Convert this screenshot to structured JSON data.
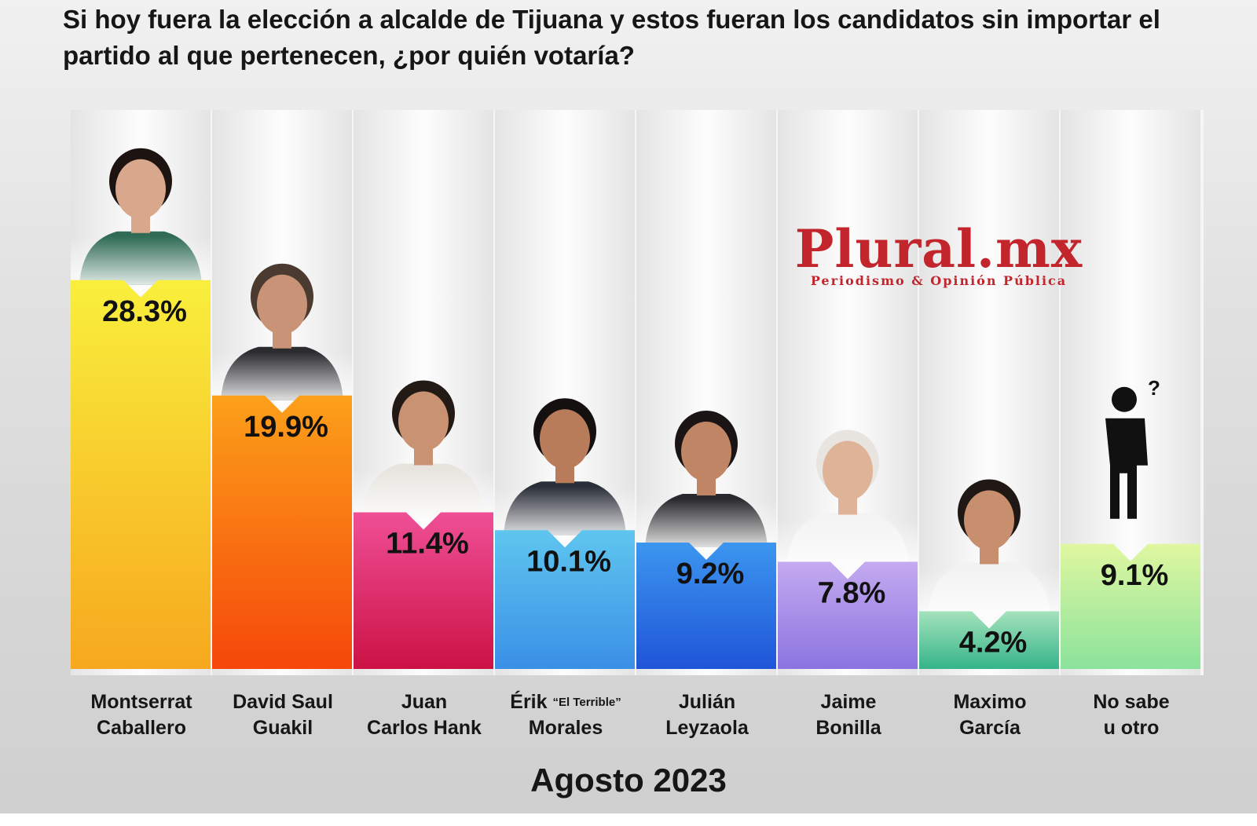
{
  "title": "Si hoy fuera la elección a alcalde de Tijuana y estos fueran los candidatos sin importar el partido al que pertenecen, ¿por quién votaría?",
  "logo": {
    "main": "Plural.mx",
    "sub": "Periodismo & Opinión Pública"
  },
  "footer": "Agosto 2023",
  "chart_data": {
    "type": "bar",
    "categories": [
      "Montserrat Caballero",
      "David Saul Guakil",
      "Juan Carlos Hank",
      "Érik \"El Terrible\" Morales",
      "Julián Leyzaola",
      "Jaime Bonilla",
      "Maximo García",
      "No sabe u otro"
    ],
    "values": [
      28.3,
      19.9,
      11.4,
      10.1,
      9.2,
      7.8,
      4.2,
      9.1
    ],
    "value_labels": [
      "28.3%",
      "19.9%",
      "11.4%",
      "10.1%",
      "9.2%",
      "7.8%",
      "4.2%",
      "9.1%"
    ],
    "ylim": [
      0,
      30
    ],
    "grid": false,
    "legend": "none",
    "colors": [
      [
        "#f9ef3c",
        "#f7a81e"
      ],
      [
        "#fca01a",
        "#f5470a"
      ],
      [
        "#ef4f96",
        "#cc1245"
      ],
      [
        "#5fc6ef",
        "#3a8fe6"
      ],
      [
        "#3c96ef",
        "#1f55d8"
      ],
      [
        "#c4aaf0",
        "#8b74e0"
      ],
      [
        "#a4e2bc",
        "#36b489"
      ],
      [
        "#e0f7a0",
        "#8be39c"
      ]
    ]
  },
  "name_lines": [
    [
      "Montserrat",
      "Caballero"
    ],
    [
      "David Saul",
      "Guakil"
    ],
    [
      "Juan",
      "Carlos Hank"
    ],
    [
      "Érik",
      "“El Terrible”",
      "Morales"
    ],
    [
      "Julián",
      "Leyzaola"
    ],
    [
      "Jaime",
      "Bonilla"
    ],
    [
      "Maximo",
      "García"
    ],
    [
      "No sabe",
      "u otro"
    ]
  ]
}
